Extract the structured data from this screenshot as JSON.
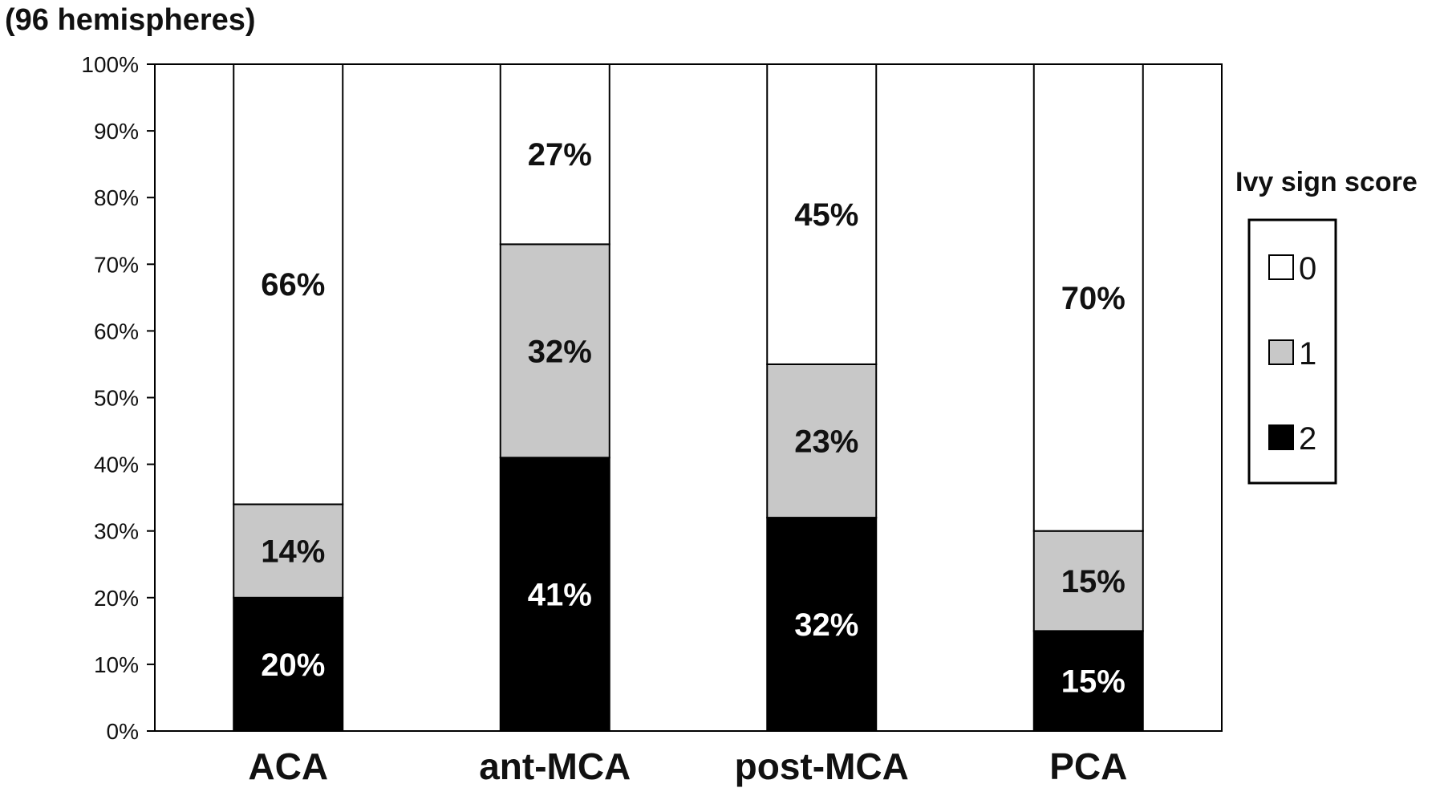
{
  "chart_data": {
    "type": "bar",
    "stacked": true,
    "subtitle": "(96 hemispheres)",
    "categories": [
      "ACA",
      "ant-MCA",
      "post-MCA",
      "PCA"
    ],
    "series": [
      {
        "name": "2",
        "color": "#000000",
        "values": [
          20,
          41,
          32,
          15
        ],
        "labels": [
          "20%",
          "41%",
          "32%",
          "15%"
        ]
      },
      {
        "name": "1",
        "color": "#c8c8c8",
        "values": [
          14,
          32,
          23,
          15
        ],
        "labels": [
          "14%",
          "32%",
          "23%",
          "15%"
        ]
      },
      {
        "name": "0",
        "color": "#ffffff",
        "values": [
          66,
          27,
          45,
          70
        ],
        "labels": [
          "66%",
          "27%",
          "45%",
          "70%"
        ]
      }
    ],
    "ylim": [
      0,
      100
    ],
    "yticks": [
      "0%",
      "10%",
      "20%",
      "30%",
      "40%",
      "50%",
      "60%",
      "70%",
      "80%",
      "90%",
      "100%"
    ],
    "legend": {
      "title": "Ivy sign score",
      "position": "right",
      "entries": [
        "0",
        "1",
        "2"
      ]
    },
    "grid": false
  }
}
